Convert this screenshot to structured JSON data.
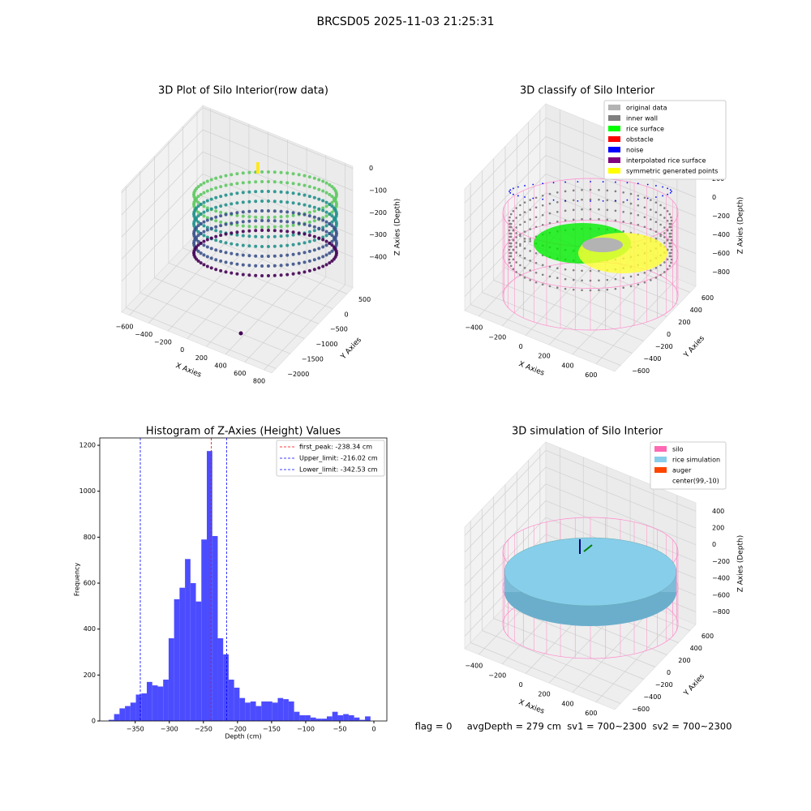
{
  "title": "BRCSD05 2025-11-03 21:25:31",
  "footer": "flag = 0     avgDepth = 279 cm  sv1 = 700~2300  sv2 = 700~2300",
  "chart_data": [
    {
      "type": "scatter3d",
      "title": "3D Plot of Silo Interior(row data)",
      "x_label": "X Axies",
      "y_label": "Y Axies",
      "z_label": "Z Axies (Depth)",
      "xlim": [
        -680,
        880
      ],
      "ylim": [
        -2150,
        700
      ],
      "zlim": [
        -540,
        10
      ],
      "xticks": [
        {
          "value": -600,
          "label": "−600"
        },
        {
          "value": -400,
          "label": "−400"
        },
        {
          "value": -200,
          "label": "−200"
        },
        0,
        200,
        400,
        600,
        800
      ],
      "yticks": [
        {
          "value": -2000,
          "label": "−2000"
        },
        {
          "value": -1500,
          "label": "−1500"
        },
        {
          "value": -1000,
          "label": "−1000"
        },
        {
          "value": -500,
          "label": "−500"
        },
        0,
        500
      ],
      "zticks": [
        {
          "value": -400,
          "label": "−400"
        },
        {
          "value": -300,
          "label": "−300"
        },
        {
          "value": -200,
          "label": "−200"
        },
        {
          "value": -100,
          "label": "−100"
        },
        0
      ],
      "grid": true
    },
    {
      "type": "scatter3d",
      "title": "3D classify of Silo Interior",
      "x_label": "X Axies",
      "y_label": "Y Axies",
      "z_label": "Z Axies (Depth)",
      "xlim": [
        -520,
        760
      ],
      "ylim": [
        -700,
        700
      ],
      "zlim": [
        -950,
        350
      ],
      "xticks": [
        {
          "value": -400,
          "label": "−400"
        },
        {
          "value": -200,
          "label": "−200"
        },
        0,
        200,
        400,
        600
      ],
      "yticks": [
        {
          "value": -600,
          "label": "−600"
        },
        {
          "value": -400,
          "label": "−400"
        },
        {
          "value": -200,
          "label": "−200"
        },
        0,
        200,
        400,
        600
      ],
      "zticks": [
        {
          "value": -800,
          "label": "−800"
        },
        {
          "value": -600,
          "label": "−600"
        },
        {
          "value": -400,
          "label": "−400"
        },
        {
          "value": -200,
          "label": "−200"
        },
        0,
        200
      ],
      "grid": true,
      "legend": [
        {
          "name": "original data",
          "color": "#b3b3b3"
        },
        {
          "name": "inner wall",
          "color": "#808080"
        },
        {
          "name": "rice surface",
          "color": "#00ff00"
        },
        {
          "name": "obstacle",
          "color": "#ff0000"
        },
        {
          "name": "noise",
          "color": "#0000ff"
        },
        {
          "name": "interpolated rice surface",
          "color": "#800080"
        },
        {
          "name": "symmetric generated points",
          "color": "#ffff00"
        }
      ]
    },
    {
      "type": "histogram",
      "title": "Histogram of Z-Axies (Height) Values",
      "x_label": "Depth (cm)",
      "y_label": "Frequency",
      "color": "#4c4cff",
      "bins": [
        -389,
        -381,
        -373,
        -365,
        -357,
        -349,
        -341,
        -333,
        -325,
        -317,
        -309,
        -301,
        -293,
        -285,
        -277,
        -269,
        -261,
        -253,
        -245,
        -237,
        -229,
        -221,
        -213,
        -205,
        -197,
        -189,
        -181,
        -173,
        -165,
        -157,
        -149,
        -141,
        -133,
        -125,
        -117,
        -109,
        -101,
        -93,
        -85,
        -77,
        -69,
        -61,
        -53,
        -45,
        -37,
        -29,
        -21,
        -13,
        -5
      ],
      "values": [
        5,
        30,
        55,
        65,
        80,
        115,
        120,
        170,
        155,
        150,
        180,
        360,
        530,
        580,
        705,
        600,
        520,
        790,
        1175,
        805,
        360,
        290,
        180,
        145,
        100,
        80,
        85,
        65,
        85,
        85,
        80,
        100,
        95,
        85,
        40,
        25,
        25,
        15,
        10,
        10,
        20,
        40,
        25,
        30,
        25,
        15,
        5,
        20
      ],
      "xlim": [
        -402,
        19
      ],
      "ylim": [
        0,
        1232
      ],
      "xticks": [
        {
          "value": -350,
          "label": "−350"
        },
        {
          "value": -300,
          "label": "−300"
        },
        {
          "value": -250,
          "label": "−250"
        },
        {
          "value": -200,
          "label": "−200"
        },
        {
          "value": -150,
          "label": "−150"
        },
        {
          "value": -100,
          "label": "−100"
        },
        {
          "value": -50,
          "label": "−50"
        },
        0
      ],
      "yticks": [
        0,
        200,
        400,
        600,
        800,
        1000,
        1200
      ],
      "vlines": [
        {
          "name": "first_peak: -238.34 cm",
          "value": -238.34,
          "color": "#ff0000"
        },
        {
          "name": "Upper_limit: -216.02 cm",
          "value": -216.02,
          "color": "#0000ff"
        },
        {
          "name": "Lower_limit: -342.53 cm",
          "value": -342.53,
          "color": "#0000ff"
        }
      ]
    },
    {
      "type": "scatter3d",
      "title": "3D simulation of Silo Interior",
      "x_label": "X Axies",
      "y_label": "Y Axies",
      "z_label": "Z Axies (Depth)",
      "xlim": [
        -520,
        760
      ],
      "ylim": [
        -700,
        700
      ],
      "zlim": [
        -950,
        500
      ],
      "xticks": [
        {
          "value": -400,
          "label": "−400"
        },
        {
          "value": -200,
          "label": "−200"
        },
        0,
        200,
        400,
        600
      ],
      "yticks": [
        {
          "value": -600,
          "label": "−600"
        },
        {
          "value": -400,
          "label": "−400"
        },
        {
          "value": -200,
          "label": "−200"
        },
        0,
        200,
        400,
        600
      ],
      "zticks": [
        {
          "value": -800,
          "label": "−800"
        },
        {
          "value": -600,
          "label": "−600"
        },
        {
          "value": -400,
          "label": "−400"
        },
        {
          "value": -200,
          "label": "−200"
        },
        0,
        200,
        400
      ],
      "grid": true,
      "legend": [
        {
          "name": "silo",
          "color": "#ff69b4"
        },
        {
          "name": "rice simulation",
          "color": "#87ceeb"
        },
        {
          "name": "auger",
          "color": "#ff4500"
        },
        {
          "name": "center(99,-10)",
          "color": "#ffffff"
        }
      ]
    }
  ]
}
